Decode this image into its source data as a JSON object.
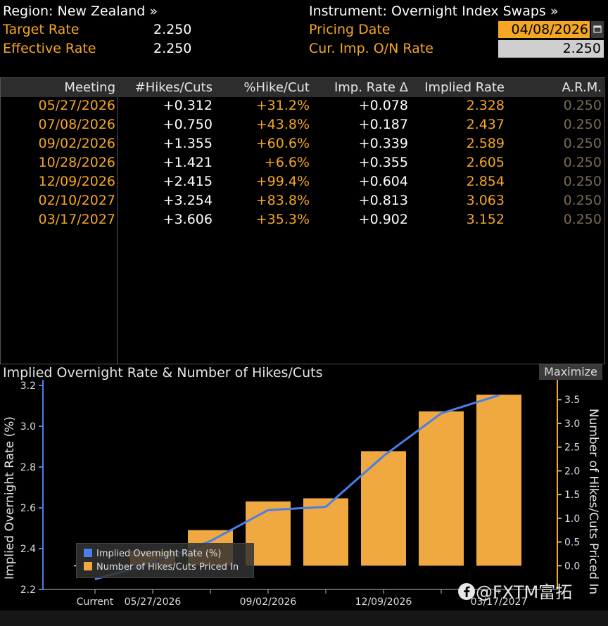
{
  "header": {
    "region_label": "Region: New Zealand »",
    "instrument_label": "Instrument: Overnight Index Swaps »",
    "target_rate_label": "Target Rate",
    "target_rate_value": "2.250",
    "effective_rate_label": "Effective Rate",
    "effective_rate_value": "2.250",
    "pricing_date_label": "Pricing Date",
    "pricing_date_value": "04/08/2026",
    "cur_imp_label": "Cur. Imp. O/N Rate",
    "cur_imp_value": "2.250",
    "calendar_icon": "calendar-icon"
  },
  "table": {
    "columns": [
      "Meeting",
      "#Hikes/Cuts",
      "%Hike/Cut",
      "Imp. Rate Δ",
      "Implied Rate",
      "A.R.M."
    ],
    "rows": [
      [
        "05/27/2026",
        "+0.312",
        "+31.2%",
        "+0.078",
        "2.328",
        "0.250"
      ],
      [
        "07/08/2026",
        "+0.750",
        "+43.8%",
        "+0.187",
        "2.437",
        "0.250"
      ],
      [
        "09/02/2026",
        "+1.355",
        "+60.6%",
        "+0.339",
        "2.589",
        "0.250"
      ],
      [
        "10/28/2026",
        "+1.421",
        "+6.6%",
        "+0.355",
        "2.605",
        "0.250"
      ],
      [
        "12/09/2026",
        "+2.415",
        "+99.4%",
        "+0.604",
        "2.854",
        "0.250"
      ],
      [
        "02/10/2027",
        "+3.254",
        "+83.8%",
        "+0.813",
        "3.063",
        "0.250"
      ],
      [
        "03/17/2027",
        "+3.606",
        "+35.3%",
        "+0.902",
        "3.152",
        "0.250"
      ]
    ]
  },
  "chart_panel": {
    "title": "Implied Overnight Rate & Number of Hikes/Cuts",
    "maximize_label": "Maximize"
  },
  "chart_data": {
    "type": "bar",
    "title": "Implied Overnight Rate & Number of Hikes/Cuts",
    "categories": [
      "Current",
      "05/27/2026",
      "07/08/2026",
      "09/02/2026",
      "10/28/2026",
      "12/09/2026",
      "02/10/2027",
      "03/17/2027"
    ],
    "x_tick_labels": [
      "Current",
      "05/27/2026",
      "",
      "09/02/2026",
      "",
      "12/09/2026",
      "",
      "03/17/2027"
    ],
    "series": [
      {
        "name": "Implied Overnight Rate (%)",
        "type": "line",
        "axis": "left",
        "color": "#4a7ee8",
        "values": [
          2.25,
          2.328,
          2.437,
          2.589,
          2.605,
          2.854,
          3.063,
          3.152
        ]
      },
      {
        "name": "Number of Hikes/Cuts Priced In",
        "type": "bar",
        "axis": "right",
        "color": "#f0a840",
        "values": [
          0,
          0.312,
          0.75,
          1.355,
          1.421,
          2.415,
          3.254,
          3.606
        ]
      }
    ],
    "ylabel": "Implied Overnight Rate (%)",
    "y2label": "Number of Hikes/Cuts Priced In",
    "ylim": [
      2.2,
      3.2
    ],
    "y2lim": [
      -0.5,
      3.8
    ],
    "yticks": [
      "2.2",
      "2.4",
      "2.6",
      "2.8",
      "3.0",
      "3.2"
    ],
    "y2ticks": [
      "0.0",
      "0.5",
      "1.0",
      "1.5",
      "2.0",
      "2.5",
      "3.0",
      "3.5"
    ],
    "legend_position": "bottom-left",
    "grid": false
  },
  "watermark": {
    "icon": "facebook-icon",
    "text": "@FXTM富拓"
  }
}
